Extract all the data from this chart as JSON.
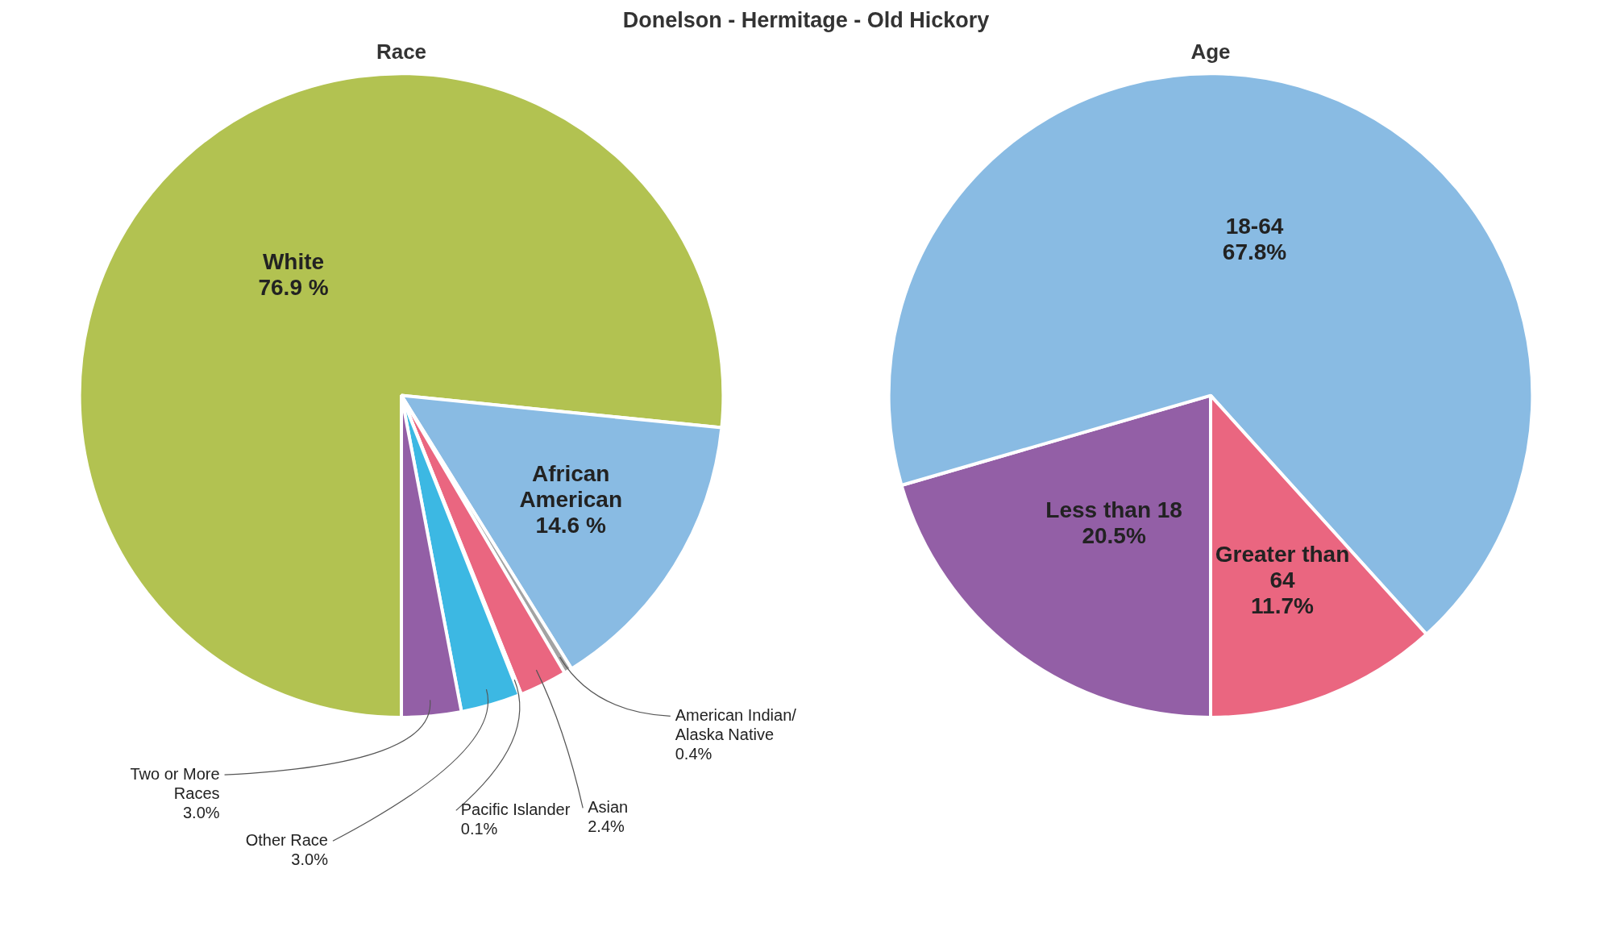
{
  "chart_data": [
    {
      "type": "pie",
      "title": "Race",
      "annotations": [
        "Donelson - Hermitage - Old Hickory"
      ],
      "categories": [
        "White",
        "African American",
        "American Indian/ Alaska Native",
        "Asian",
        "Pacific Islander",
        "Other Race",
        "Two or More Races"
      ],
      "values": [
        76.9,
        14.6,
        0.4,
        2.4,
        0.1,
        3.0,
        3.0
      ],
      "value_labels": [
        "76.9 %",
        "14.6 %",
        "0.4%",
        "2.4%",
        "0.1%",
        "3.0%",
        "3.0%"
      ],
      "colors": [
        "#b2c251",
        "#89bbe3",
        "#a3a3a3",
        "#ea6680",
        "#5fbf8a",
        "#3cb8e3",
        "#935fa6"
      ]
    },
    {
      "type": "pie",
      "title": "Age",
      "categories": [
        "Less than 18",
        "18-64",
        "Greater than 64"
      ],
      "values": [
        20.5,
        67.8,
        11.7
      ],
      "value_labels": [
        "20.5%",
        "67.8%",
        "11.7%"
      ],
      "colors": [
        "#935fa6",
        "#89bbe3",
        "#ea6680"
      ]
    }
  ]
}
